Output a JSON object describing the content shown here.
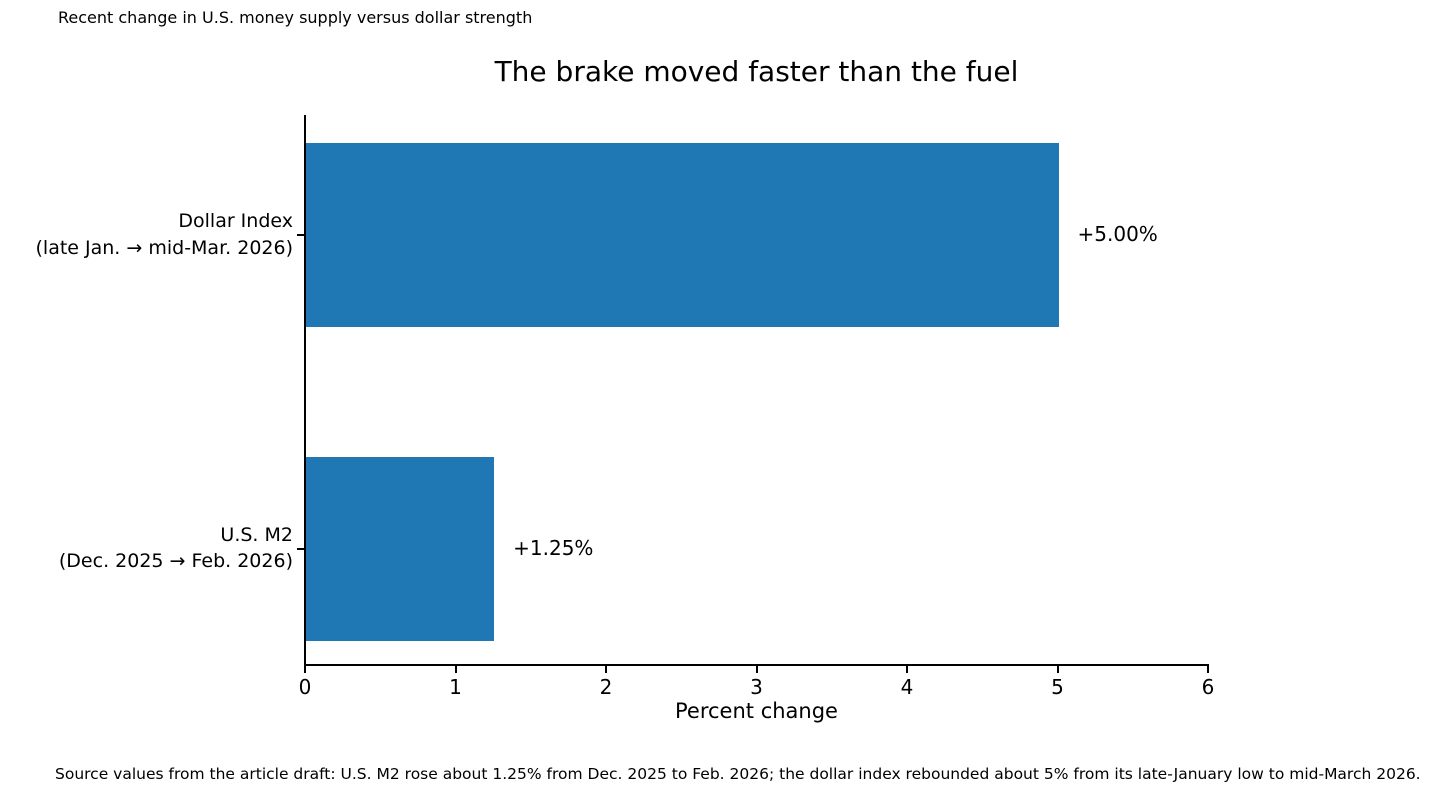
{
  "figure": {
    "top_note": "Recent change in U.S. money supply versus dollar strength",
    "source_note": "Source values from the article draft: U.S. M2 rose about 1.25% from Dec. 2025 to Feb. 2026; the dollar index rebounded about 5% from its late-January low to mid-March 2026."
  },
  "chart_data": {
    "type": "bar",
    "orientation": "horizontal",
    "title": "The brake moved faster than the fuel",
    "xlabel": "Percent change",
    "ylabel": "",
    "xlim": [
      0,
      6
    ],
    "xticks": [
      0,
      1,
      2,
      3,
      4,
      5,
      6
    ],
    "grid": false,
    "legend": false,
    "bar_color": "#1f77b4",
    "categories": [
      [
        "Dollar Index",
        "(late Jan. → mid-Mar. 2026)"
      ],
      [
        "U.S. M2",
        "(Dec. 2025 → Feb. 2026)"
      ]
    ],
    "values": [
      5.0,
      1.25
    ],
    "value_labels": [
      "+5.00%",
      "+1.25%"
    ]
  }
}
